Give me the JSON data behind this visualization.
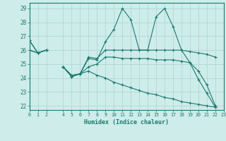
{
  "x": [
    0,
    1,
    2,
    3,
    4,
    5,
    6,
    7,
    8,
    9,
    10,
    11,
    12,
    13,
    14,
    15,
    16,
    17,
    18,
    19,
    20,
    21,
    22,
    23
  ],
  "line_top": [
    26.7,
    25.8,
    26.0,
    null,
    24.8,
    24.1,
    24.3,
    25.4,
    25.3,
    26.6,
    27.5,
    29.0,
    28.2,
    26.0,
    26.0,
    28.4,
    29.0,
    27.7,
    26.0,
    25.1,
    23.9,
    22.9,
    21.9,
    null
  ],
  "line_mid": [
    26.0,
    25.8,
    26.0,
    null,
    24.8,
    24.1,
    24.3,
    25.5,
    25.4,
    26.0,
    26.0,
    26.0,
    26.0,
    26.0,
    26.0,
    26.0,
    26.0,
    26.0,
    26.0,
    25.9,
    25.8,
    25.7,
    25.5,
    null
  ],
  "line_low": [
    26.0,
    25.8,
    26.0,
    null,
    24.8,
    24.1,
    24.3,
    24.8,
    25.0,
    25.5,
    25.5,
    25.4,
    25.4,
    25.4,
    25.4,
    25.3,
    25.3,
    25.3,
    25.2,
    25.1,
    24.5,
    23.5,
    22.0,
    null
  ],
  "line_diag": [
    26.7,
    25.8,
    26.0,
    null,
    24.8,
    24.2,
    24.3,
    24.5,
    24.2,
    24.0,
    23.7,
    23.5,
    23.3,
    23.1,
    22.9,
    22.8,
    22.6,
    22.5,
    22.3,
    22.2,
    22.1,
    22.0,
    21.9,
    null
  ],
  "color": "#1a7a6e",
  "bg_color": "#ceecea",
  "grid_color": "#afd8d4",
  "xlabel": "Humidex (Indice chaleur)",
  "xlim": [
    0,
    23
  ],
  "ylim": [
    21.7,
    29.4
  ],
  "yticks": [
    22,
    23,
    24,
    25,
    26,
    27,
    28,
    29
  ],
  "xticks": [
    0,
    1,
    2,
    4,
    5,
    6,
    7,
    8,
    9,
    10,
    11,
    12,
    13,
    14,
    15,
    16,
    17,
    18,
    19,
    20,
    21,
    22,
    23
  ]
}
